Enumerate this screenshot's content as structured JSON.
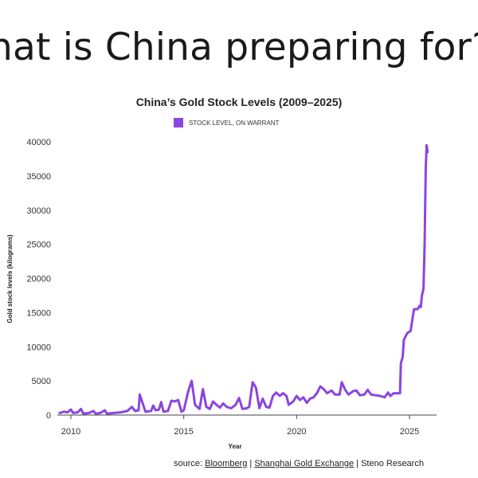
{
  "slide": {
    "title": "hat is China preparing for?"
  },
  "chart_data": {
    "type": "line",
    "title": "China’s Gold Stock Levels (2009–2025)",
    "xlabel": "Year",
    "ylabel": "Gold stock levels (kilograms)",
    "xlim": [
      2009.4,
      2026.2
    ],
    "ylim": [
      0,
      40000
    ],
    "x_ticks": [
      "2010",
      "2015",
      "2020",
      "2025"
    ],
    "y_ticks": [
      "0",
      "5000",
      "10000",
      "15000",
      "20000",
      "25000",
      "30000",
      "35000",
      "40000"
    ],
    "legend_position": "top-center",
    "grid": false,
    "series": [
      {
        "name": "STOCK LEVEL, ON WARRANT",
        "color": "#8B45E0",
        "points": [
          [
            2009.5,
            300
          ],
          [
            2009.7,
            500
          ],
          [
            2009.85,
            400
          ],
          [
            2010.0,
            800
          ],
          [
            2010.1,
            300
          ],
          [
            2010.3,
            400
          ],
          [
            2010.45,
            900
          ],
          [
            2010.55,
            200
          ],
          [
            2010.8,
            300
          ],
          [
            2011.0,
            600
          ],
          [
            2011.1,
            200
          ],
          [
            2011.3,
            300
          ],
          [
            2011.5,
            700
          ],
          [
            2011.6,
            200
          ],
          [
            2011.9,
            300
          ],
          [
            2012.2,
            400
          ],
          [
            2012.5,
            600
          ],
          [
            2012.7,
            1200
          ],
          [
            2012.85,
            600
          ],
          [
            2013.0,
            700
          ],
          [
            2013.05,
            3000
          ],
          [
            2013.15,
            2000
          ],
          [
            2013.3,
            500
          ],
          [
            2013.55,
            600
          ],
          [
            2013.65,
            1400
          ],
          [
            2013.75,
            700
          ],
          [
            2013.9,
            800
          ],
          [
            2014.0,
            1900
          ],
          [
            2014.1,
            500
          ],
          [
            2014.3,
            600
          ],
          [
            2014.45,
            2100
          ],
          [
            2014.6,
            2000
          ],
          [
            2014.75,
            2200
          ],
          [
            2014.9,
            500
          ],
          [
            2015.0,
            700
          ],
          [
            2015.2,
            3500
          ],
          [
            2015.35,
            5000
          ],
          [
            2015.5,
            1500
          ],
          [
            2015.7,
            900
          ],
          [
            2015.85,
            3800
          ],
          [
            2016.0,
            1200
          ],
          [
            2016.15,
            900
          ],
          [
            2016.3,
            2000
          ],
          [
            2016.45,
            1500
          ],
          [
            2016.6,
            1100
          ],
          [
            2016.75,
            1700
          ],
          [
            2016.9,
            1200
          ],
          [
            2017.1,
            1000
          ],
          [
            2017.3,
            1500
          ],
          [
            2017.45,
            2500
          ],
          [
            2017.6,
            900
          ],
          [
            2017.8,
            1000
          ],
          [
            2017.9,
            1200
          ],
          [
            2018.05,
            4800
          ],
          [
            2018.2,
            4000
          ],
          [
            2018.35,
            1000
          ],
          [
            2018.5,
            2400
          ],
          [
            2018.65,
            1200
          ],
          [
            2018.8,
            1100
          ],
          [
            2018.95,
            2800
          ],
          [
            2019.1,
            3300
          ],
          [
            2019.25,
            2800
          ],
          [
            2019.4,
            3200
          ],
          [
            2019.55,
            2800
          ],
          [
            2019.65,
            1500
          ],
          [
            2019.85,
            2000
          ],
          [
            2020.0,
            2800
          ],
          [
            2020.15,
            2200
          ],
          [
            2020.3,
            2600
          ],
          [
            2020.45,
            1800
          ],
          [
            2020.6,
            2400
          ],
          [
            2020.75,
            2600
          ],
          [
            2020.9,
            3200
          ],
          [
            2021.05,
            4200
          ],
          [
            2021.2,
            3800
          ],
          [
            2021.35,
            3200
          ],
          [
            2021.55,
            3600
          ],
          [
            2021.7,
            3000
          ],
          [
            2021.9,
            3000
          ],
          [
            2022.0,
            4800
          ],
          [
            2022.15,
            3700
          ],
          [
            2022.3,
            3000
          ],
          [
            2022.5,
            3500
          ],
          [
            2022.65,
            3600
          ],
          [
            2022.8,
            2900
          ],
          [
            2023.0,
            3000
          ],
          [
            2023.15,
            3700
          ],
          [
            2023.3,
            3000
          ],
          [
            2023.5,
            2900
          ],
          [
            2023.7,
            2800
          ],
          [
            2023.9,
            2600
          ],
          [
            2024.05,
            3300
          ],
          [
            2024.15,
            2800
          ],
          [
            2024.3,
            3200
          ],
          [
            2024.45,
            3200
          ],
          [
            2024.58,
            3200
          ],
          [
            2024.62,
            7600
          ],
          [
            2024.7,
            8500
          ],
          [
            2024.75,
            11000
          ],
          [
            2024.9,
            12000
          ],
          [
            2025.05,
            12300
          ],
          [
            2025.15,
            14500
          ],
          [
            2025.2,
            15500
          ],
          [
            2025.35,
            15500
          ],
          [
            2025.45,
            16000
          ],
          [
            2025.5,
            15800
          ],
          [
            2025.55,
            17500
          ],
          [
            2025.62,
            18500
          ],
          [
            2025.67,
            25000
          ],
          [
            2025.72,
            36000
          ],
          [
            2025.76,
            39500
          ],
          [
            2025.8,
            38500
          ]
        ]
      }
    ]
  },
  "source": {
    "prefix": "source: ",
    "bloomberg": "Bloomberg",
    "sep1": " | ",
    "sge": "Shanghai Gold Exchange",
    "sep2": " | ",
    "steno": "Steno Research"
  }
}
